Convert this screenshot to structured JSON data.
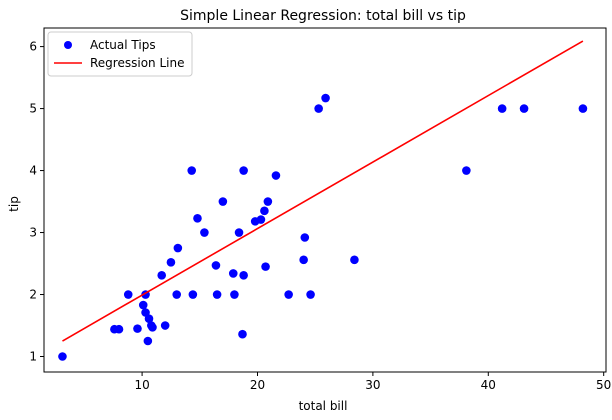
{
  "chart_data": {
    "type": "scatter",
    "title": "Simple Linear Regression: total bill vs tip",
    "xlabel": "total bill",
    "ylabel": "tip",
    "xlim": [
      1.5,
      50.2
    ],
    "ylim": [
      0.75,
      6.3
    ],
    "xticks": [
      10,
      20,
      30,
      40,
      50
    ],
    "yticks": [
      1,
      2,
      3,
      4,
      5,
      6
    ],
    "grid": false,
    "legend_position": "top-left",
    "series": [
      {
        "name": "Actual Tips",
        "kind": "scatter",
        "color": "#0000ff",
        "points": [
          [
            3.1,
            1.0
          ],
          [
            7.6,
            1.44
          ],
          [
            8.0,
            1.44
          ],
          [
            8.8,
            2.0
          ],
          [
            9.6,
            1.45
          ],
          [
            10.1,
            1.83
          ],
          [
            10.3,
            2.0
          ],
          [
            10.3,
            1.71
          ],
          [
            10.5,
            1.25
          ],
          [
            10.6,
            1.61
          ],
          [
            10.8,
            1.5
          ],
          [
            10.9,
            1.47
          ],
          [
            11.7,
            2.31
          ],
          [
            12.0,
            1.5
          ],
          [
            12.5,
            2.52
          ],
          [
            13.0,
            2.0
          ],
          [
            13.1,
            2.75
          ],
          [
            14.3,
            4.0
          ],
          [
            14.4,
            2.0
          ],
          [
            14.8,
            3.23
          ],
          [
            15.4,
            3.0
          ],
          [
            16.4,
            2.47
          ],
          [
            16.5,
            2.0
          ],
          [
            17.0,
            3.5
          ],
          [
            17.9,
            2.34
          ],
          [
            18.0,
            2.0
          ],
          [
            18.4,
            3.0
          ],
          [
            18.7,
            1.36
          ],
          [
            18.8,
            2.31
          ],
          [
            18.8,
            4.0
          ],
          [
            19.8,
            3.18
          ],
          [
            20.3,
            3.21
          ],
          [
            20.6,
            3.35
          ],
          [
            20.7,
            2.45
          ],
          [
            20.9,
            3.5
          ],
          [
            21.6,
            3.92
          ],
          [
            22.7,
            2.0
          ],
          [
            24.0,
            2.56
          ],
          [
            24.1,
            2.92
          ],
          [
            24.6,
            2.0
          ],
          [
            25.3,
            5.0
          ],
          [
            25.9,
            5.17
          ],
          [
            28.4,
            2.56
          ],
          [
            38.1,
            4.0
          ],
          [
            41.2,
            5.0
          ],
          [
            43.1,
            5.0
          ],
          [
            48.2,
            5.0
          ]
        ]
      },
      {
        "name": "Regression Line",
        "kind": "line",
        "color": "#ff0000",
        "points": [
          [
            3.1,
            1.25
          ],
          [
            48.2,
            6.09
          ]
        ]
      }
    ]
  }
}
